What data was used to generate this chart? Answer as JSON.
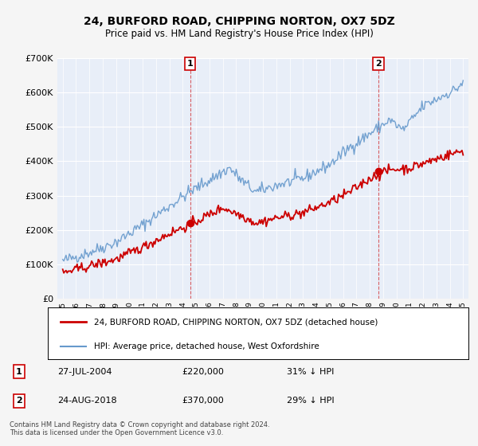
{
  "title": "24, BURFORD ROAD, CHIPPING NORTON, OX7 5DZ",
  "subtitle": "Price paid vs. HM Land Registry's House Price Index (HPI)",
  "legend_line1": "24, BURFORD ROAD, CHIPPING NORTON, OX7 5DZ (detached house)",
  "legend_line2": "HPI: Average price, detached house, West Oxfordshire",
  "annotation1_date": "27-JUL-2004",
  "annotation1_price": "£220,000",
  "annotation1_hpi": "31% ↓ HPI",
  "annotation2_date": "24-AUG-2018",
  "annotation2_price": "£370,000",
  "annotation2_hpi": "29% ↓ HPI",
  "footer": "Contains HM Land Registry data © Crown copyright and database right 2024.\nThis data is licensed under the Open Government Licence v3.0.",
  "red_color": "#cc0000",
  "blue_color": "#6699cc",
  "background_color": "#f5f5f5",
  "plot_bg_color": "#e8eef8",
  "ylim": [
    0,
    700000
  ],
  "yticks": [
    0,
    100000,
    200000,
    300000,
    400000,
    500000,
    600000,
    700000
  ],
  "ytick_labels": [
    "£0",
    "£100K",
    "£200K",
    "£300K",
    "£400K",
    "£500K",
    "£600K",
    "£700K"
  ],
  "sale1_x": 2004.55,
  "sale1_y": 220000,
  "sale2_x": 2018.65,
  "sale2_y": 370000,
  "xmin": 1994.6,
  "xmax": 2025.4
}
